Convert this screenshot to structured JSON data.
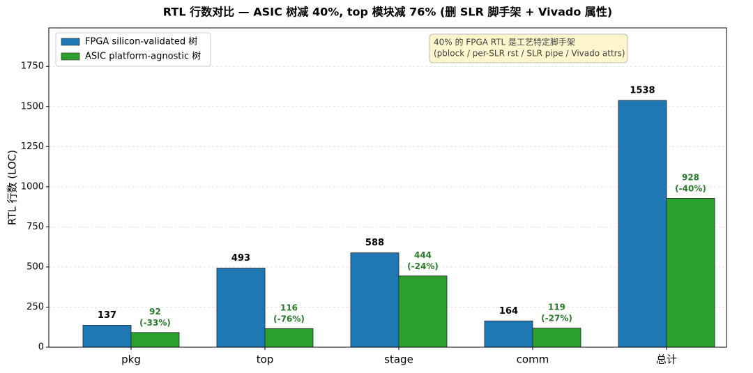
{
  "chart_data": {
    "type": "bar",
    "title": "RTL 行数对比 — ASIC 树减 40%, top 模块减 76% (删 SLR 脚手架 + Vivado 属性)",
    "y_label": "RTL 行数 (LOC)",
    "categories": [
      "pkg",
      "top",
      "stage",
      "comm",
      "总计"
    ],
    "series": [
      {
        "name": "FPGA silicon-validated 树",
        "color": "#1f77b4",
        "values": [
          137,
          493,
          588,
          164,
          1538
        ]
      },
      {
        "name": "ASIC platform-agnostic 树",
        "color": "#2ca02c",
        "values": [
          92,
          116,
          444,
          119,
          928
        ],
        "value_labels": [
          "92\n(-33%)",
          "116\n(-76%)",
          "444\n(-24%)",
          "119\n(-27%)",
          "928\n(-40%)"
        ]
      }
    ],
    "ylim": [
      0,
      1990
    ],
    "yticks": [
      0,
      250,
      500,
      750,
      1000,
      1250,
      1500,
      1750
    ],
    "grid": true,
    "legend": "upper left",
    "annotation": [
      "40% 的 FPGA RTL 是工艺特定脚手架",
      "(pblock / per-SLR rst / SLR pipe / Vivado attrs)"
    ]
  }
}
